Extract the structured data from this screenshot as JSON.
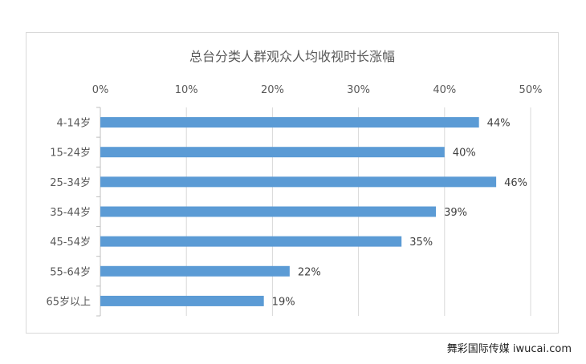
{
  "chart_data": {
    "type": "bar",
    "orientation": "horizontal",
    "title": "总台分类人群观众人均收视时长涨幅",
    "categories": [
      "4-14岁",
      "15-24岁",
      "25-34岁",
      "35-44岁",
      "45-54岁",
      "55-64岁",
      "65岁以上"
    ],
    "values": [
      44,
      40,
      46,
      39,
      35,
      22,
      19
    ],
    "data_labels": [
      "44%",
      "40%",
      "46%",
      "39%",
      "35%",
      "22%",
      "19%"
    ],
    "x_ticks": [
      "0%",
      "10%",
      "20%",
      "30%",
      "40%",
      "50%"
    ],
    "xlim": [
      0,
      50
    ],
    "x_axis_position": "top",
    "grid": true,
    "legend": "none",
    "colors": {
      "bar": "#5b9bd5",
      "grid": "#d9d9d9",
      "axis": "#bfbfbf"
    }
  },
  "footer": {
    "credit": "舞彩国际传媒 iwucai.com"
  }
}
